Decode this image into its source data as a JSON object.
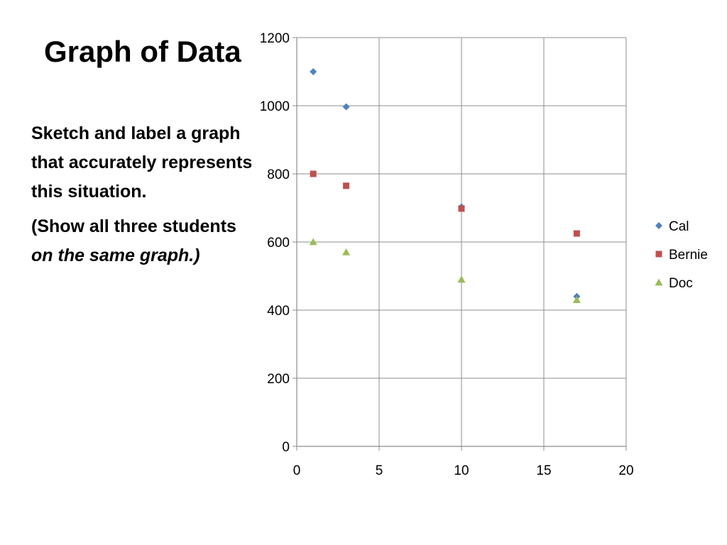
{
  "slide": {
    "title": "Graph of Data",
    "instruction": "Sketch and label a graph that  accurately represents this situation.",
    "note_prefix": "(Show all three students ",
    "note_emphasis": "on the same graph.)"
  },
  "chart_data": {
    "type": "scatter",
    "title": "",
    "xlabel": "",
    "ylabel": "",
    "xlim": [
      0,
      20
    ],
    "ylim": [
      0,
      1200
    ],
    "x_ticks": [
      0,
      5,
      10,
      15,
      20
    ],
    "y_ticks": [
      0,
      200,
      400,
      600,
      800,
      1000,
      1200
    ],
    "grid": true,
    "legend_position": "right",
    "series": [
      {
        "name": "Cal",
        "marker": "diamond",
        "color": "#4f81bd",
        "points": [
          [
            1,
            1100
          ],
          [
            3,
            997
          ],
          [
            10,
            703
          ],
          [
            17,
            440
          ]
        ]
      },
      {
        "name": "Bernie",
        "marker": "square",
        "color": "#c0504d",
        "points": [
          [
            1,
            800
          ],
          [
            3,
            765
          ],
          [
            10,
            698
          ],
          [
            17,
            625
          ]
        ]
      },
      {
        "name": "Doc",
        "marker": "triangle",
        "color": "#9bbb59",
        "points": [
          [
            1,
            600
          ],
          [
            3,
            570
          ],
          [
            10,
            490
          ],
          [
            17,
            430
          ]
        ]
      }
    ]
  }
}
